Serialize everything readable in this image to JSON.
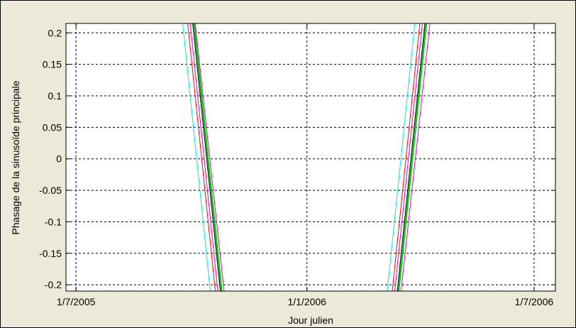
{
  "chart_data": {
    "type": "line",
    "title": "",
    "xlabel": "Jour julien",
    "ylabel": "Phasage de la sinusoïde principale",
    "x_ticks": [
      {
        "date": "2005-07-01",
        "label": "1/7/2005"
      },
      {
        "date": "2006-01-01",
        "label": "1/1/2006"
      },
      {
        "date": "2006-07-01",
        "label": "1/7/2006"
      }
    ],
    "y_ticks": [
      0.2,
      0.15,
      0.1,
      0.05,
      0,
      -0.05,
      -0.1,
      -0.15,
      -0.2
    ],
    "y_tick_labels": [
      "0.2",
      "0.15",
      "0.1",
      "0.05",
      "0",
      "-0.05",
      "-0.1",
      "-0.15",
      "-0.2"
    ],
    "xlim": [
      "2005-06-23",
      "2006-07-18"
    ],
    "ylim": [
      -0.21,
      0.215
    ],
    "grid": true,
    "grid_style": "dotted",
    "legend": "none",
    "series": [
      {
        "color": "#00e5e5",
        "lineWidth": 1,
        "segments": [
          [
            {
              "x": "2005-09-24",
              "y": 0.215
            },
            {
              "x": "2005-10-16",
              "y": -0.21
            }
          ],
          [
            {
              "x": "2006-03-06",
              "y": -0.21
            },
            {
              "x": "2006-03-28",
              "y": 0.215
            }
          ]
        ]
      },
      {
        "color": "#ff0000",
        "lineWidth": 1,
        "segments": [
          [
            {
              "x": "2005-09-28",
              "y": 0.215
            },
            {
              "x": "2005-10-20",
              "y": -0.21
            }
          ],
          [
            {
              "x": "2006-03-10",
              "y": -0.21
            },
            {
              "x": "2006-04-01",
              "y": 0.215
            }
          ]
        ]
      },
      {
        "color": "#e000e0",
        "lineWidth": 1,
        "segments": [
          [
            {
              "x": "2005-09-30",
              "y": 0.215
            },
            {
              "x": "2005-10-22",
              "y": -0.21
            }
          ],
          [
            {
              "x": "2006-03-12",
              "y": -0.21
            },
            {
              "x": "2006-04-03",
              "y": 0.215
            }
          ]
        ]
      },
      {
        "color": "#000000",
        "lineWidth": 1,
        "segments": [
          [
            {
              "x": "2005-10-02",
              "y": 0.215
            },
            {
              "x": "2005-10-24",
              "y": -0.21
            }
          ],
          [
            {
              "x": "2006-03-14",
              "y": -0.21
            },
            {
              "x": "2006-04-05",
              "y": 0.215
            }
          ]
        ]
      },
      {
        "color": "#00cc00",
        "lineWidth": 2.5,
        "segments": [
          [
            {
              "x": "2005-10-03",
              "y": 0.215
            },
            {
              "x": "2005-10-25",
              "y": -0.21
            }
          ],
          [
            {
              "x": "2006-03-15",
              "y": -0.21
            },
            {
              "x": "2006-04-06",
              "y": 0.215
            }
          ]
        ]
      },
      {
        "color": "#e000e0",
        "lineWidth": 1,
        "segments": [
          [
            {
              "x": "2005-10-04",
              "y": 0.215
            },
            {
              "x": "2005-10-27",
              "y": -0.21
            }
          ],
          [
            {
              "x": "2006-03-17",
              "y": -0.21
            },
            {
              "x": "2006-04-09",
              "y": 0.215
            }
          ]
        ]
      }
    ]
  }
}
